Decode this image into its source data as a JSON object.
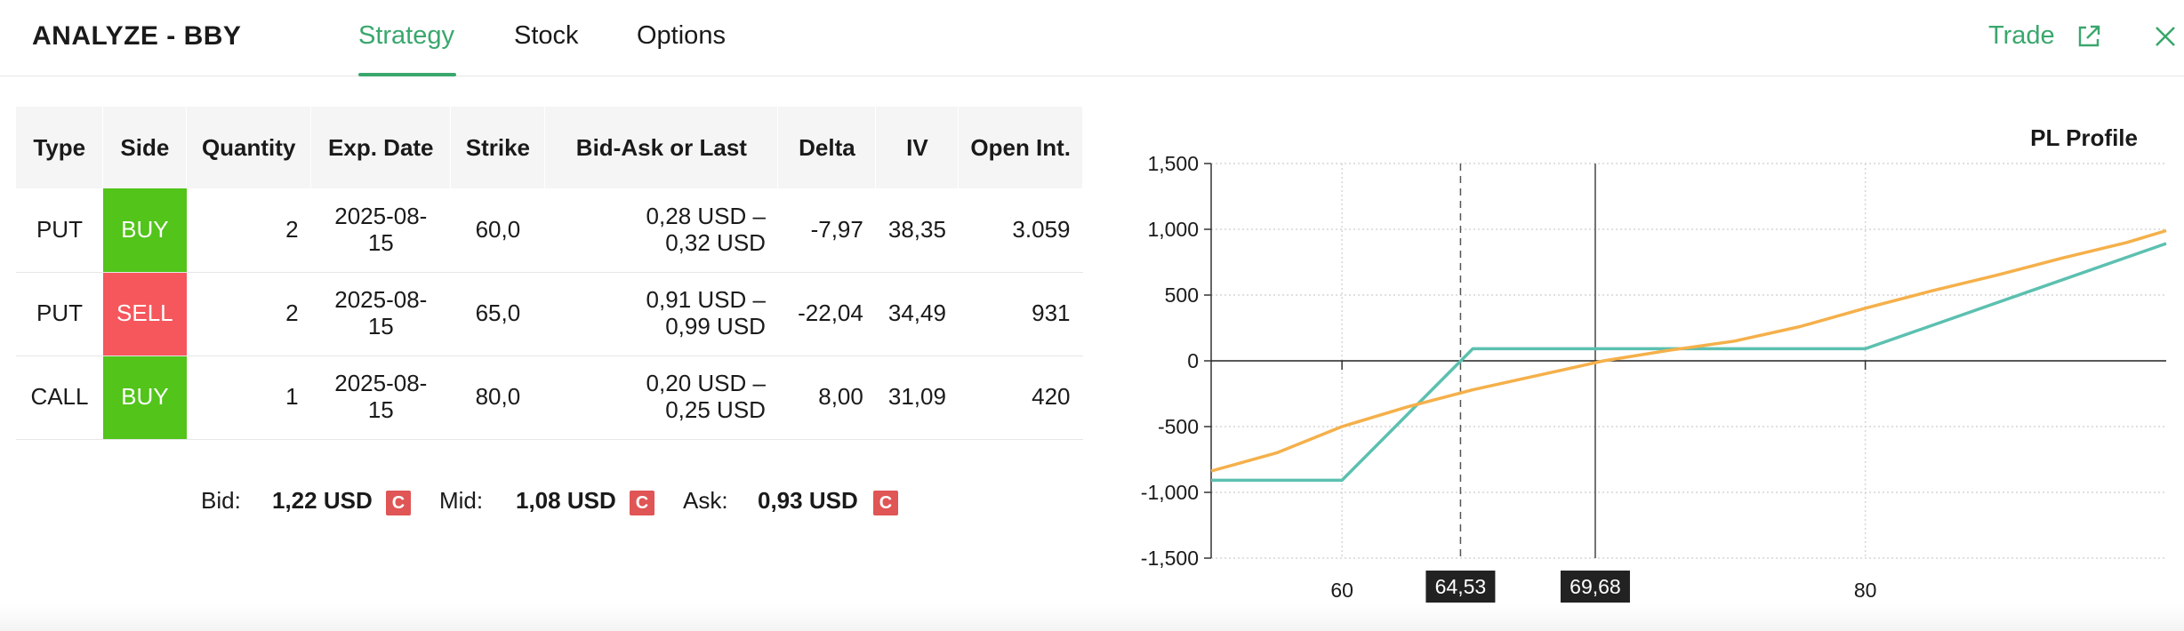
{
  "header": {
    "title": "ANALYZE - BBY",
    "tabs": [
      {
        "label": "Strategy",
        "active": true
      },
      {
        "label": "Stock",
        "active": false
      },
      {
        "label": "Options",
        "active": false
      }
    ],
    "trade_label": "Trade",
    "accent_color": "#3aa76d"
  },
  "table": {
    "headers": [
      "Type",
      "Side",
      "Quantity",
      "Exp. Date",
      "Strike",
      "Bid-Ask or Last",
      "Delta",
      "IV",
      "Open Int."
    ],
    "rows": [
      {
        "type": "PUT",
        "side": "BUY",
        "quantity": "2",
        "exp_date": "2025-08-15",
        "strike": "60,0",
        "bid_ask_1": "0,28 USD –",
        "bid_ask_2": "0,32 USD",
        "delta": "-7,97",
        "iv": "38,35",
        "open_int": "3.059"
      },
      {
        "type": "PUT",
        "side": "SELL",
        "quantity": "2",
        "exp_date": "2025-08-15",
        "strike": "65,0",
        "bid_ask_1": "0,91 USD –",
        "bid_ask_2": "0,99 USD",
        "delta": "-22,04",
        "iv": "34,49",
        "open_int": "931"
      },
      {
        "type": "CALL",
        "side": "BUY",
        "quantity": "1",
        "exp_date": "2025-08-15",
        "strike": "80,0",
        "bid_ask_1": "0,20 USD –",
        "bid_ask_2": "0,25 USD",
        "delta": "8,00",
        "iv": "31,09",
        "open_int": "420"
      }
    ],
    "buy_color": "#52c41a",
    "sell_color": "#f5575c"
  },
  "summary": {
    "bid_label": "Bid:",
    "bid_value": "1,22 USD",
    "mid_label": "Mid:",
    "mid_value": "1,08 USD",
    "ask_label": "Ask:",
    "ask_value": "0,93 USD",
    "badge": "C"
  },
  "chart_data": {
    "type": "line",
    "title": "PL Profile",
    "xlim": [
      55,
      91.5
    ],
    "ylim": [
      -1500,
      1500
    ],
    "x_ticks": [
      60,
      80
    ],
    "x_tick_labels": [
      "60",
      "80"
    ],
    "y_ticks": [
      1500,
      1000,
      500,
      0,
      -500,
      -1000,
      -1500
    ],
    "y_tick_labels": [
      "1,500",
      "1,000",
      "500",
      "0",
      "-500",
      "-1,000",
      "-1,500"
    ],
    "grid": true,
    "markers": [
      {
        "x": 64.53,
        "label": "64,53",
        "style": "dashed"
      },
      {
        "x": 69.68,
        "label": "69,68",
        "style": "solid"
      }
    ],
    "series": [
      {
        "color": "#5cc0b0",
        "x": [
          55,
          60,
          65,
          80,
          91.5
        ],
        "y": [
          -908,
          -908,
          92,
          92,
          892
        ]
      },
      {
        "color": "#f5b04a",
        "x": [
          55,
          57.5,
          60,
          62.5,
          65,
          67.5,
          70,
          72.5,
          75,
          77.5,
          80,
          82.5,
          85,
          87.5,
          90,
          91.5
        ],
        "y": [
          -838,
          -700,
          -500,
          -350,
          -220,
          -110,
          0,
          80,
          150,
          260,
          400,
          530,
          650,
          780,
          900,
          990
        ]
      }
    ]
  }
}
